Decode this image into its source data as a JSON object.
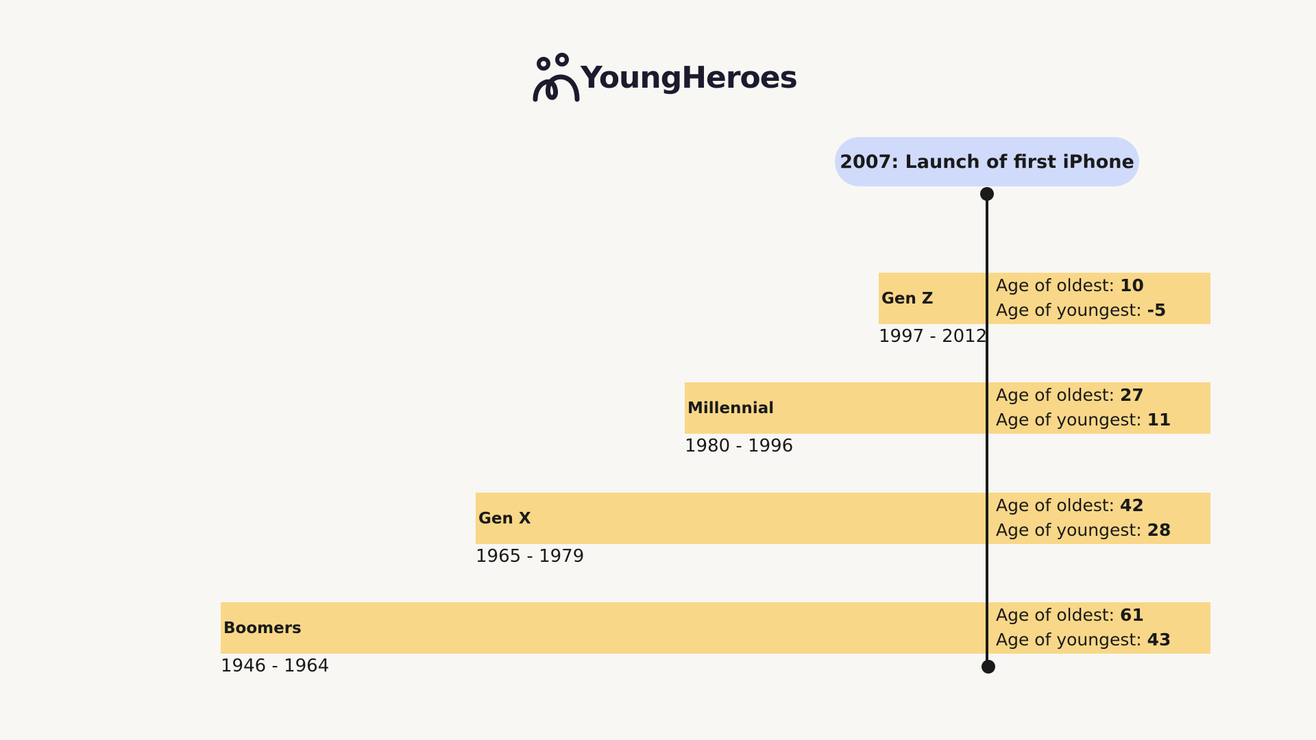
{
  "logo": {
    "text": "YoungHeroes"
  },
  "callout": {
    "text": "2007: Launch of first iPhone"
  },
  "generations": [
    {
      "name": "Gen Z",
      "years": "1997 - 2012",
      "oldest_label": "Age of oldest:",
      "oldest": "10",
      "youngest_label": "Age of youngest:",
      "youngest": "-5"
    },
    {
      "name": "Millennial",
      "years": "1980 - 1996",
      "oldest_label": "Age of oldest:",
      "oldest": "27",
      "youngest_label": "Age of youngest:",
      "youngest": "11"
    },
    {
      "name": "Gen X",
      "years": "1965 - 1979",
      "oldest_label": "Age of oldest:",
      "oldest": "42",
      "youngest_label": "Age of youngest:",
      "youngest": "28"
    },
    {
      "name": "Boomers",
      "years": "1946 - 1964",
      "oldest_label": "Age of oldest:",
      "oldest": "61",
      "youngest_label": "Age of youngest:",
      "youngest": "43"
    }
  ]
}
